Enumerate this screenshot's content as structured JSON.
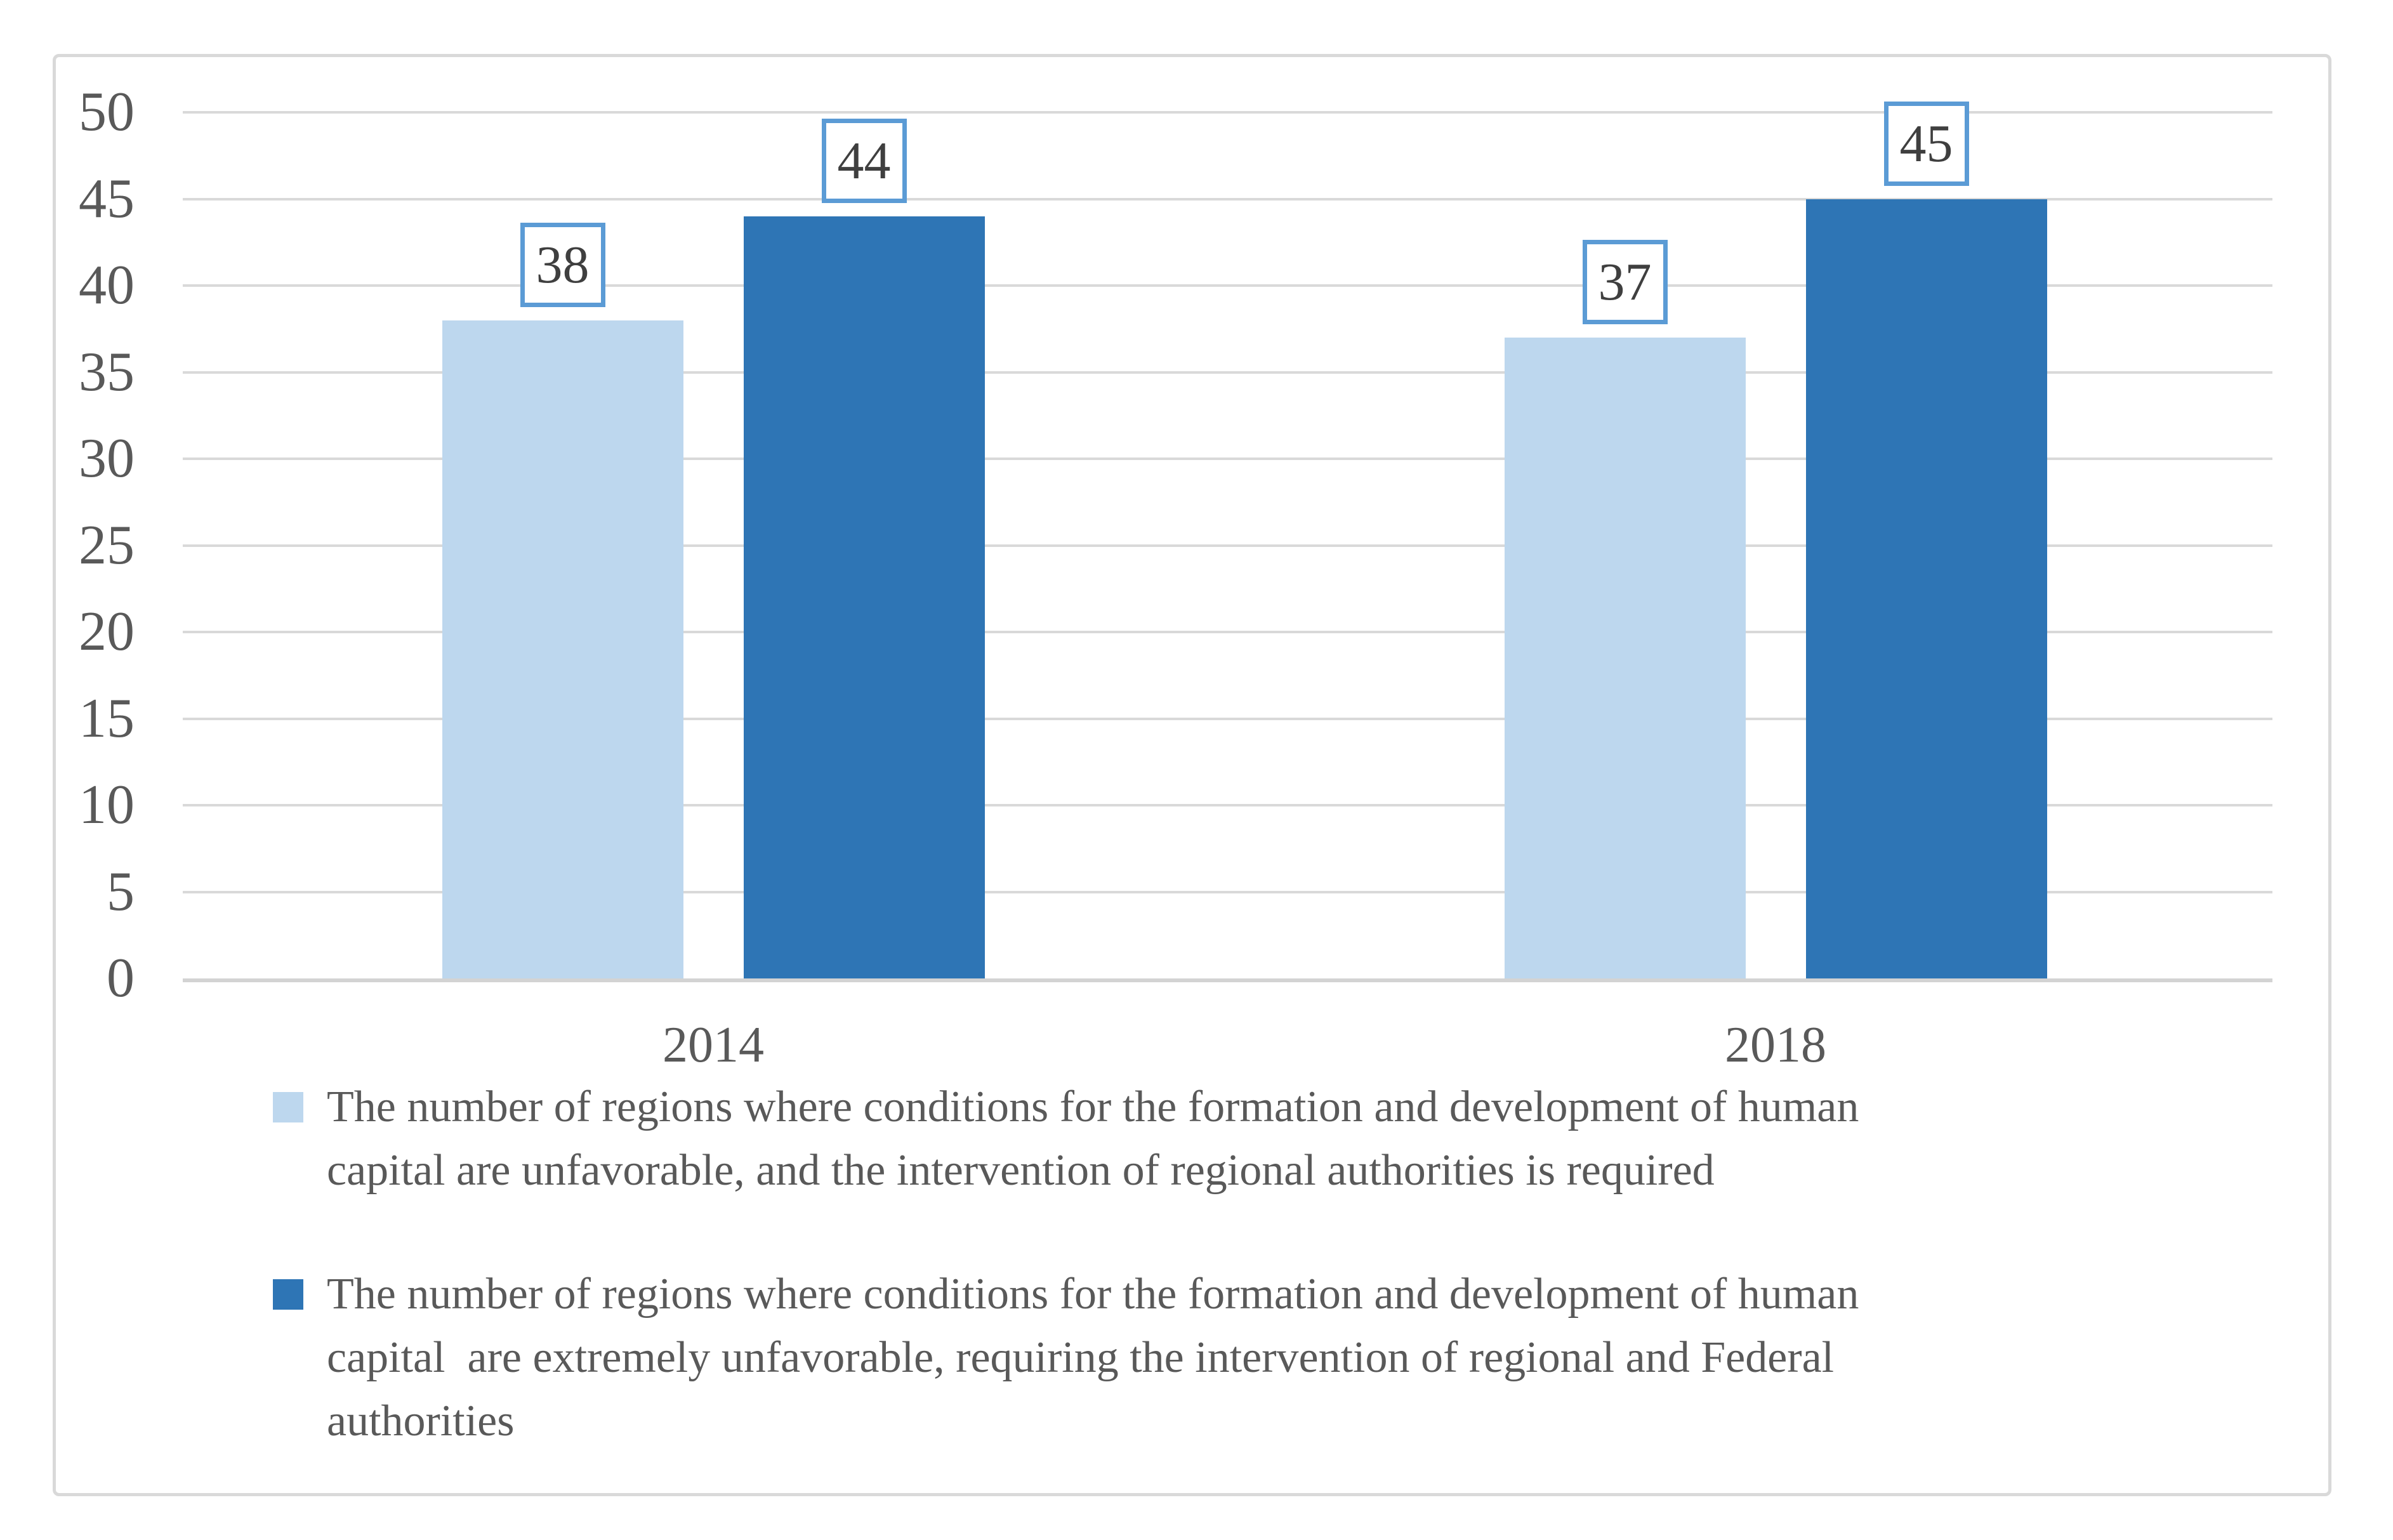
{
  "figure": {
    "background": "#FFFFFF",
    "frame_border_color": "#D9D9D9"
  },
  "colors": {
    "series1_fill": "#BDD7EE",
    "series2_fill": "#2E75B5",
    "data_label_border": "#5B9BD5",
    "data_label_text": "#3F3F3F",
    "gridline": "#D9D9D9",
    "axis_line": "#D3D3D3",
    "text": "#595959"
  },
  "chart_data": {
    "type": "bar",
    "categories": [
      "2014",
      "2018"
    ],
    "series": [
      {
        "name": "The number of regions where conditions for the formation and development of human capital are unfavorable, and the intervention of regional authorities is required",
        "color": "#BDD7EE",
        "values": [
          38,
          37
        ]
      },
      {
        "name": "The number of regions where conditions for the formation and development of human capital  are extremely unfavorable, requiring the intervention of regional and Federal authorities",
        "color": "#2E75B5",
        "values": [
          44,
          45
        ]
      }
    ],
    "title": "",
    "xlabel": "",
    "ylabel": "",
    "ylim": [
      0,
      50
    ],
    "yticks": [
      0,
      5,
      10,
      15,
      20,
      25,
      30,
      35,
      40,
      45,
      50
    ],
    "grid": true,
    "legend_position": "bottom",
    "data_labels": true
  },
  "legend": {
    "entries": [
      {
        "marker_color": "#BDD7EE",
        "lines": [
          "The number of regions where conditions for the formation and development of human",
          "capital are unfavorable, and the intervention of regional authorities is required"
        ]
      },
      {
        "marker_color": "#2E75B5",
        "lines": [
          "The number of regions where conditions for the formation and development of human",
          "capital  are extremely unfavorable, requiring the intervention of regional and Federal",
          "authorities"
        ]
      }
    ]
  }
}
